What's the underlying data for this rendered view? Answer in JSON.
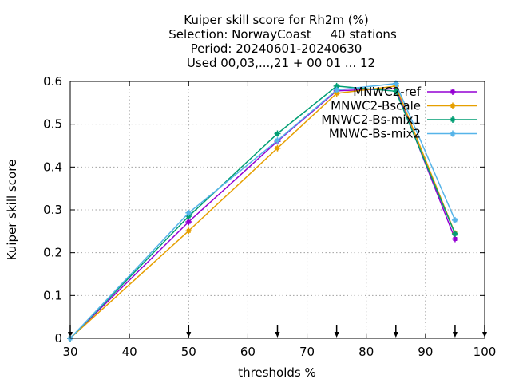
{
  "chart_data": {
    "type": "line",
    "title_lines": [
      "Kuiper skill score  for Rh2m (%)",
      "Selection: NorwayCoast     40 stations",
      "Period: 20240601-20240630",
      "Used 00,03,...,21 + 00 01 ... 12"
    ],
    "xlabel": "thresholds %",
    "ylabel": "Kuiper skill score",
    "xlim": [
      30,
      100
    ],
    "ylim": [
      0,
      0.6
    ],
    "xticks": [
      30,
      40,
      50,
      60,
      70,
      80,
      90,
      100
    ],
    "xtick_labels": [
      "30",
      "40",
      "50",
      "60",
      "70",
      "80",
      "90",
      "100"
    ],
    "yticks": [
      0,
      0.1,
      0.2,
      0.3,
      0.4,
      0.5,
      0.6
    ],
    "ytick_labels": [
      "0",
      "0.1",
      "0.2",
      "0.3",
      "0.4",
      "0.5",
      "0.6"
    ],
    "grid": true,
    "legend_position": "top-right",
    "threshold_markers": [
      30,
      50,
      65,
      75,
      85,
      95,
      100
    ],
    "x": [
      30,
      50,
      65,
      75,
      85,
      95
    ],
    "series": [
      {
        "name": "MNWC2-ref",
        "color": "#9400d3",
        "values": [
          0.0,
          0.272,
          0.46,
          0.578,
          0.583,
          0.232
        ]
      },
      {
        "name": "MNWC2-Bscale",
        "color": "#e69f00",
        "values": [
          0.0,
          0.251,
          0.444,
          0.572,
          0.589,
          0.245
        ]
      },
      {
        "name": "MNWC2-Bs-mix1",
        "color": "#009e73",
        "values": [
          0.0,
          0.285,
          0.478,
          0.589,
          0.577,
          0.244
        ]
      },
      {
        "name": "MNWC-Bs-mix2",
        "color": "#56b4e9",
        "values": [
          0.0,
          0.293,
          0.462,
          0.58,
          0.595,
          0.276
        ]
      }
    ]
  }
}
